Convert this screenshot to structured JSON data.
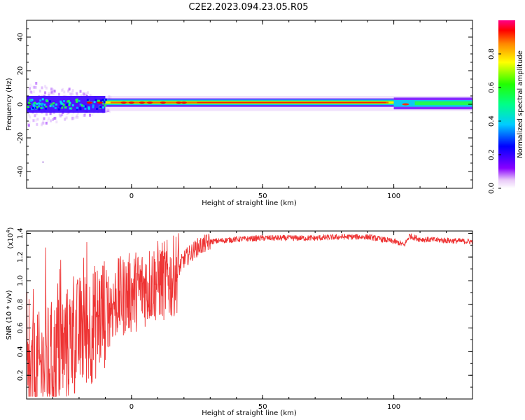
{
  "title": "C2E2.2023.094.23.05.R05",
  "colors": {
    "series": "#ee3333",
    "axis": "#000000"
  },
  "chart_data": [
    {
      "type": "heatmap",
      "xlabel": "Height of straight line (km)",
      "ylabel": "Frequency (Hz)",
      "xlim": [
        -40,
        130
      ],
      "ylim": [
        -50,
        50
      ],
      "xticks": [
        0,
        50,
        100
      ],
      "yticks": [
        -40,
        -20,
        0,
        20,
        40
      ],
      "xtick_labels": [
        "0",
        "50",
        "100"
      ],
      "ytick_labels": [
        "-40",
        "-20",
        "0",
        "20",
        "40"
      ],
      "colorbar": {
        "label": "Normalized spectral amplitude",
        "range": [
          0,
          1
        ],
        "ticks": [
          "0.0",
          "0.2",
          "0.4",
          "0.6",
          "0.8"
        ],
        "colormap": "rainbow"
      },
      "ridge": {
        "description_points": [
          [
            -40,
            0
          ],
          [
            -10,
            1
          ],
          [
            0,
            1
          ],
          [
            50,
            1
          ],
          [
            98,
            1
          ],
          [
            100,
            0
          ],
          [
            110,
            0
          ],
          [
            130,
            1
          ]
        ]
      },
      "grid": false
    },
    {
      "type": "line",
      "xlabel": "Height of straight line (km)",
      "ylabel": "SNR (10 * v/v)",
      "y_multiplier_label": "(x10",
      "y_multiplier_exp": "4",
      "xlim": [
        -40,
        130
      ],
      "ylim": [
        0,
        1.42
      ],
      "xticks": [
        0,
        50,
        100
      ],
      "yticks": [
        0.2,
        0.4,
        0.6,
        0.8,
        1.0,
        1.2,
        1.4
      ],
      "xtick_labels": [
        "0",
        "50",
        "100"
      ],
      "ytick_labels": [
        "0.2",
        "0.4",
        "0.6",
        "0.8",
        "1.0",
        "1.2",
        "1.4"
      ],
      "series": [
        {
          "color": "#ee3333",
          "x": [
            -40,
            -35,
            -30,
            -25,
            -20,
            -15,
            -10,
            -5,
            0,
            5,
            10,
            15,
            18,
            20,
            25,
            30,
            40,
            50,
            60,
            70,
            80,
            90,
            98,
            102,
            104,
            106,
            110,
            120,
            130
          ],
          "y": [
            0.12,
            0.25,
            0.35,
            0.45,
            0.55,
            0.62,
            0.75,
            0.85,
            0.9,
            0.95,
            1.0,
            1.0,
            1.1,
            1.18,
            1.28,
            1.33,
            1.35,
            1.36,
            1.36,
            1.36,
            1.37,
            1.37,
            1.34,
            1.32,
            1.3,
            1.38,
            1.35,
            1.34,
            1.33
          ]
        }
      ],
      "grid": false
    }
  ]
}
